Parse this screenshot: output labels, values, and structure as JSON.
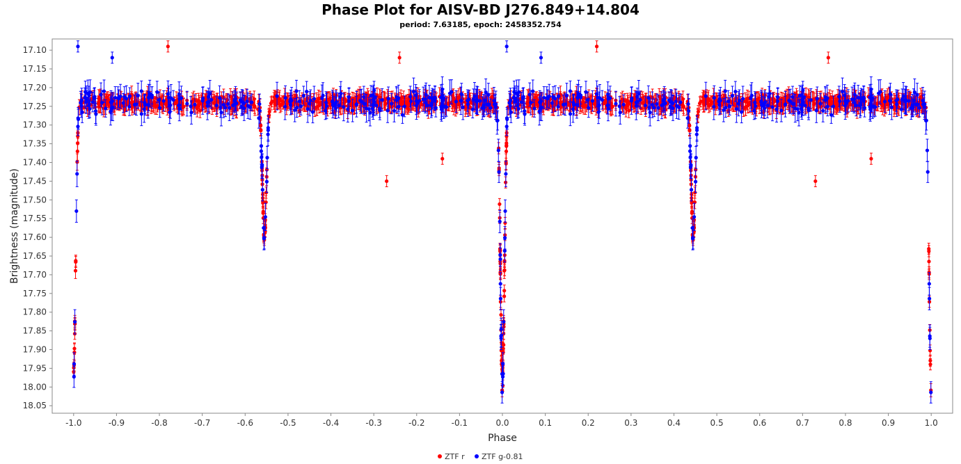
{
  "chart_data": {
    "type": "scatter",
    "title": "Phase Plot for AISV-BD J276.849+14.804",
    "subtitle": "period: 7.63185, epoch: 2458352.754",
    "xlabel": "Phase",
    "ylabel": "Brightness (magnitude)",
    "xlim": [
      -1.05,
      1.05
    ],
    "ylim": [
      18.07,
      17.07
    ],
    "y_inverted": true,
    "x_ticks": [
      "-1.0",
      "-0.9",
      "-0.8",
      "-0.7",
      "-0.6",
      "-0.5",
      "-0.4",
      "-0.3",
      "-0.2",
      "-0.1",
      "0.0",
      "0.1",
      "0.2",
      "0.3",
      "0.4",
      "0.5",
      "0.6",
      "0.7",
      "0.8",
      "0.9",
      "1.0"
    ],
    "y_ticks": [
      "17.10",
      "17.15",
      "17.20",
      "17.25",
      "17.30",
      "17.35",
      "17.40",
      "17.45",
      "17.50",
      "17.55",
      "17.60",
      "17.65",
      "17.70",
      "17.75",
      "17.80",
      "17.85",
      "17.90",
      "17.95",
      "18.00",
      "18.05"
    ],
    "grid": false,
    "legend_position": "bottom",
    "baseline_magnitude": 17.24,
    "series": [
      {
        "name": "ZTF r",
        "color": "#ff0000"
      },
      {
        "name": "ZTF g-0.81",
        "color": "#0000ff"
      }
    ],
    "eclipses": [
      {
        "phase": -1.0,
        "depth_mag": 17.96
      },
      {
        "phase": -0.555,
        "depth_mag": 17.6
      },
      {
        "phase": 0.0,
        "depth_mag": 18.01
      },
      {
        "phase": 0.445,
        "depth_mag": 17.6
      },
      {
        "phase": 1.0,
        "depth_mag": 18.01
      }
    ],
    "outliers": [
      {
        "series": 0,
        "x": -0.78,
        "y": 17.09
      },
      {
        "series": 0,
        "x": -0.27,
        "y": 17.45
      },
      {
        "series": 0,
        "x": -0.14,
        "y": 17.39
      },
      {
        "series": 0,
        "x": -0.24,
        "y": 17.12
      },
      {
        "series": 0,
        "x": 0.22,
        "y": 17.09
      },
      {
        "series": 0,
        "x": 0.73,
        "y": 17.45
      },
      {
        "series": 0,
        "x": 0.86,
        "y": 17.39
      },
      {
        "series": 0,
        "x": 0.76,
        "y": 17.12
      },
      {
        "series": 1,
        "x": -0.99,
        "y": 17.09
      },
      {
        "series": 1,
        "x": 0.01,
        "y": 17.09
      },
      {
        "series": 1,
        "x": -0.91,
        "y": 17.12
      },
      {
        "series": 1,
        "x": 0.09,
        "y": 17.12
      }
    ]
  }
}
